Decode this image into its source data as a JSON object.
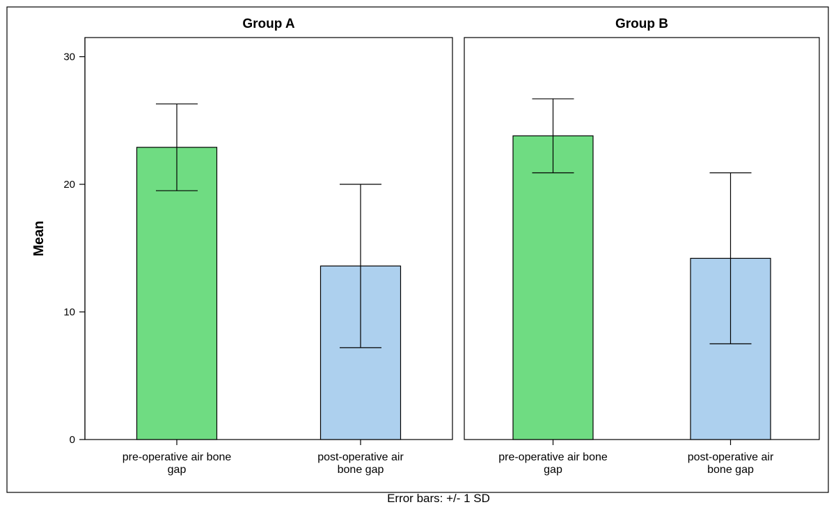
{
  "chart_data": {
    "type": "bar",
    "ylabel": "Mean",
    "ylim": [
      0,
      31.5
    ],
    "yticks": [
      0,
      10,
      20,
      30
    ],
    "footnote": "Error bars: +/- 1 SD",
    "categories": [
      "pre-operative air bone gap",
      "post-operative air bone gap"
    ],
    "category_lines": [
      [
        "pre-operative air bone",
        "gap"
      ],
      [
        "post-operative air",
        "bone gap"
      ]
    ],
    "colors": {
      "pre": "#6fdc82",
      "post": "#add0ee"
    },
    "panels": [
      {
        "title": "Group A",
        "values": [
          22.9,
          13.6
        ],
        "errors": [
          3.4,
          6.4
        ]
      },
      {
        "title": "Group B",
        "values": [
          23.8,
          14.2
        ],
        "errors": [
          2.9,
          6.7
        ]
      }
    ]
  }
}
